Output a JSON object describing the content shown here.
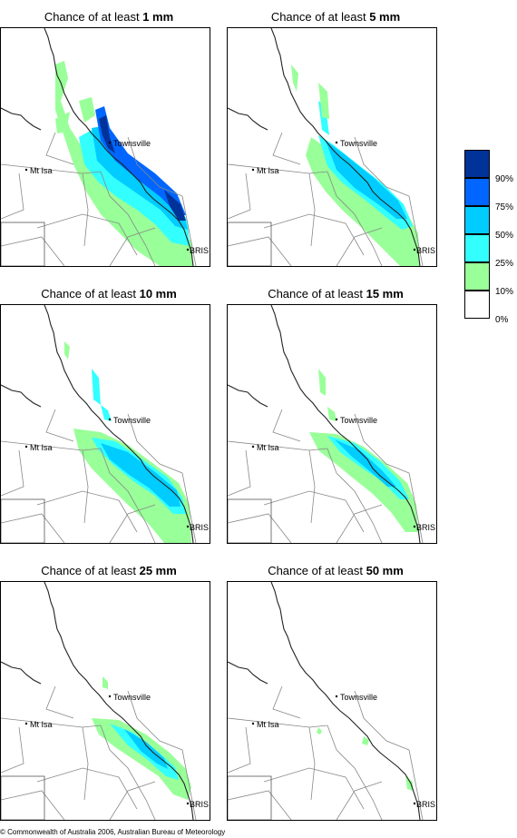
{
  "panels": [
    {
      "id": "p1",
      "title_prefix": "Chance of at least ",
      "amount": "1 mm",
      "level": 1
    },
    {
      "id": "p2",
      "title_prefix": "Chance of at least ",
      "amount": "5 mm",
      "level": 2
    },
    {
      "id": "p3",
      "title_prefix": "Chance of at least ",
      "amount": "10 mm",
      "level": 3
    },
    {
      "id": "p4",
      "title_prefix": "Chance of at least ",
      "amount": "15 mm",
      "level": 4
    },
    {
      "id": "p5",
      "title_prefix": "Chance of at least ",
      "amount": "25 mm",
      "level": 5
    },
    {
      "id": "p6",
      "title_prefix": "Chance of at least ",
      "amount": "50 mm",
      "level": 6
    }
  ],
  "places": {
    "townsville": "Townsville",
    "mt_isa": "Mt Isa",
    "bris": "BRIS"
  },
  "legend": {
    "labels": [
      "90%",
      "75%",
      "50%",
      "25%",
      "10%",
      "0%"
    ],
    "colors": [
      "#003399",
      "#0066ff",
      "#00ccff",
      "#33ffff",
      "#99ff99",
      "#ffffff"
    ]
  },
  "copyright": "© Commonwealth of Australia 2006, Australian Bureau of Meteorology"
}
